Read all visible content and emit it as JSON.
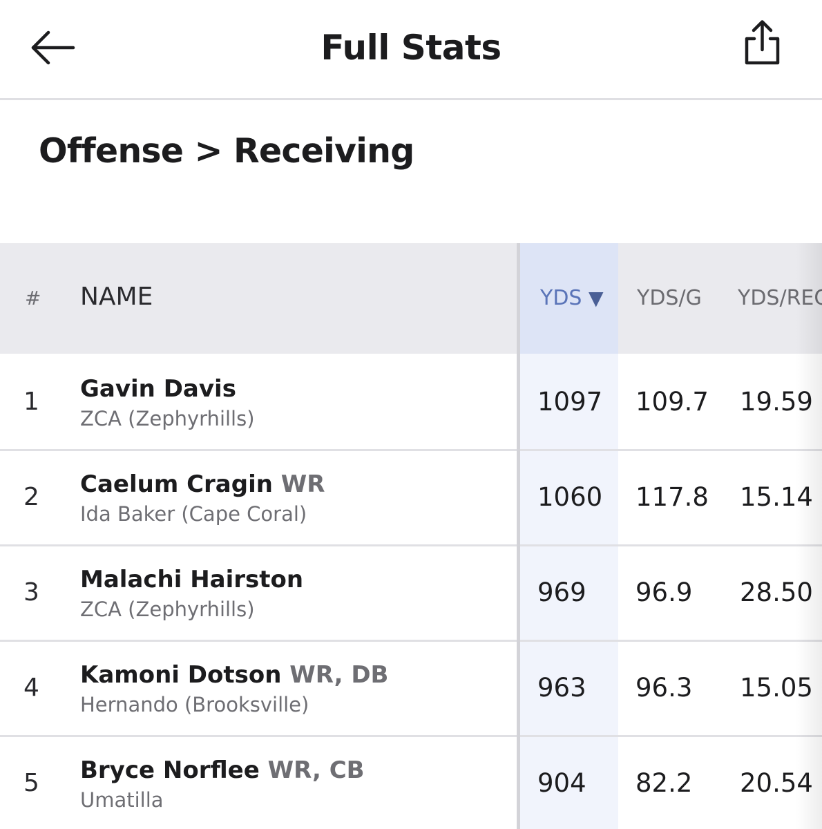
{
  "header": {
    "title": "Full Stats",
    "back_icon": "arrow-left-icon",
    "share_icon": "share-icon"
  },
  "breadcrumb": "Offense > Receiving",
  "table": {
    "columns": {
      "rank": "#",
      "name": "NAME",
      "yds": "YDS",
      "yds_sort": "▼",
      "ydsg": "YDS/G",
      "ydsrec": "YDS/REC"
    },
    "rows": [
      {
        "rank": "1",
        "name": "Gavin Davis",
        "pos": "",
        "school": "ZCA (Zephyrhills)",
        "yds": "1097",
        "ydsg": "109.7",
        "ydsrec": "19.59"
      },
      {
        "rank": "2",
        "name": "Caelum Cragin",
        "pos": "WR",
        "school": "Ida Baker (Cape Coral)",
        "yds": "1060",
        "ydsg": "117.8",
        "ydsrec": "15.14"
      },
      {
        "rank": "3",
        "name": "Malachi Hairston",
        "pos": "",
        "school": "ZCA (Zephyrhills)",
        "yds": "969",
        "ydsg": "96.9",
        "ydsrec": "28.50"
      },
      {
        "rank": "4",
        "name": "Kamoni Dotson",
        "pos": "WR, DB",
        "school": "Hernando (Brooksville)",
        "yds": "963",
        "ydsg": "96.3",
        "ydsrec": "15.05"
      },
      {
        "rank": "5",
        "name": "Bryce Norflee",
        "pos": "WR, CB",
        "school": "Umatilla",
        "yds": "904",
        "ydsg": "82.2",
        "ydsrec": "20.54"
      }
    ]
  }
}
